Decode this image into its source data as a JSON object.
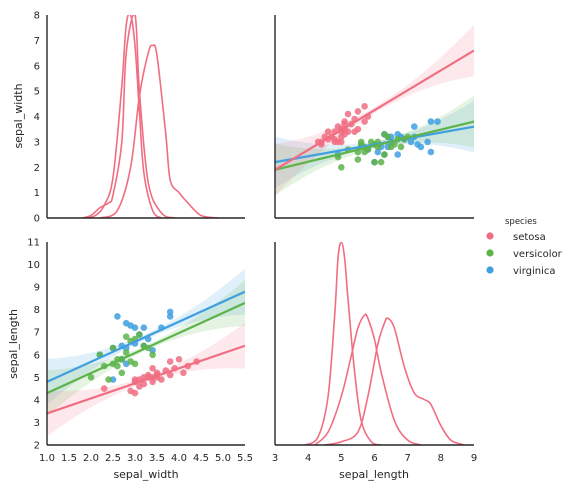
{
  "colors": {
    "setosa": "#f06d82",
    "versicolor": "#5db34a",
    "virginica": "#3f9fe0",
    "axis": "#262626"
  },
  "legend": {
    "title": "species",
    "placement": "right",
    "entries": [
      "setosa",
      "versicolor",
      "virginica"
    ]
  },
  "chart_data": [
    {
      "type": "line",
      "panel": "top-left",
      "subtype": "kde",
      "xlabel": "",
      "ylabel": "sepal_width",
      "yticks": [
        0,
        1,
        2,
        3,
        4,
        5,
        6,
        7,
        8
      ],
      "ylim": [
        0,
        8
      ],
      "xlim": [
        1.0,
        5.5
      ],
      "series": [
        {
          "values_x": [
            1.9,
            2.1,
            2.3,
            2.5,
            2.7,
            2.8,
            2.9,
            3.0,
            3.1,
            3.2,
            3.4,
            3.6
          ],
          "values_y": [
            0.0,
            0.1,
            0.5,
            1.6,
            5.2,
            7.6,
            8.0,
            6.8,
            4.2,
            1.8,
            0.3,
            0.0
          ]
        },
        {
          "values_x": [
            1.8,
            2.0,
            2.2,
            2.4,
            2.5,
            2.7,
            2.8,
            3.0,
            3.1,
            3.3,
            3.6,
            3.9
          ],
          "values_y": [
            0.0,
            0.1,
            0.4,
            0.6,
            0.9,
            3.0,
            6.5,
            8.0,
            5.0,
            1.4,
            0.2,
            0.0
          ]
        },
        {
          "values_x": [
            2.2,
            2.6,
            2.9,
            3.1,
            3.3,
            3.4,
            3.5,
            3.7,
            3.8,
            4.0,
            4.2,
            4.5,
            4.9
          ],
          "values_y": [
            0.0,
            0.3,
            2.0,
            4.8,
            6.5,
            6.8,
            6.4,
            3.3,
            1.5,
            1.0,
            0.6,
            0.1,
            0.0
          ]
        }
      ]
    },
    {
      "type": "scatter",
      "panel": "top-right",
      "xlabel": "",
      "ylabel": "",
      "xlim": [
        3,
        9
      ],
      "ylim": [
        0,
        8
      ],
      "series": [
        {
          "name": "setosa",
          "x": [
            4.4,
            4.5,
            4.6,
            4.6,
            4.7,
            4.8,
            4.8,
            4.9,
            4.9,
            5.0,
            5.0,
            5.0,
            5.1,
            5.1,
            5.1,
            5.2,
            5.2,
            5.3,
            5.4,
            5.4,
            5.5,
            5.5,
            5.7,
            5.7,
            5.8,
            4.3,
            4.4,
            4.8,
            5.0,
            5.1
          ],
          "y": [
            2.9,
            3.2,
            3.1,
            3.4,
            3.2,
            3.0,
            3.4,
            3.0,
            3.6,
            3.0,
            3.4,
            3.5,
            3.3,
            3.5,
            3.8,
            3.4,
            4.1,
            3.7,
            3.9,
            3.4,
            4.2,
            3.5,
            3.8,
            4.4,
            4.0,
            3.0,
            3.0,
            3.1,
            3.2,
            3.7
          ],
          "fit": [
            [
              3,
              1.9
            ],
            [
              9,
              6.6
            ]
          ]
        },
        {
          "name": "versicolor",
          "x": [
            4.9,
            5.0,
            5.2,
            5.5,
            5.6,
            5.6,
            5.7,
            5.8,
            5.9,
            6.0,
            6.0,
            6.1,
            6.2,
            6.3,
            6.3,
            6.4,
            6.5,
            6.6,
            6.7,
            6.8,
            6.9,
            7.0,
            5.5,
            6.1,
            5.7
          ],
          "y": [
            2.4,
            2.0,
            2.7,
            2.3,
            2.9,
            3.0,
            2.8,
            2.7,
            3.0,
            2.2,
            2.9,
            2.8,
            2.2,
            2.5,
            3.3,
            3.2,
            2.8,
            2.9,
            3.1,
            2.8,
            3.1,
            3.2,
            2.6,
            3.0,
            2.6
          ],
          "fit": [
            [
              3,
              1.9
            ],
            [
              9,
              3.8
            ]
          ]
        },
        {
          "name": "virginica",
          "x": [
            4.9,
            5.6,
            5.8,
            6.0,
            6.1,
            6.2,
            6.3,
            6.3,
            6.4,
            6.5,
            6.7,
            6.7,
            6.8,
            6.9,
            7.1,
            7.2,
            7.3,
            7.4,
            7.6,
            7.7,
            7.7,
            7.9,
            6.4,
            6.5,
            7.2
          ],
          "y": [
            2.5,
            2.8,
            2.7,
            2.2,
            2.6,
            2.8,
            2.5,
            3.3,
            3.2,
            3.0,
            3.3,
            2.5,
            3.2,
            3.1,
            3.0,
            3.2,
            2.9,
            2.8,
            3.0,
            3.8,
            2.6,
            3.8,
            2.8,
            3.2,
            3.6
          ],
          "fit": [
            [
              3,
              2.2
            ],
            [
              9,
              3.6
            ]
          ]
        }
      ]
    },
    {
      "type": "scatter",
      "panel": "bottom-left",
      "xlabel": "sepal_width",
      "ylabel": "sepal_length",
      "xticks": [
        1.0,
        1.5,
        2.0,
        2.5,
        3.0,
        3.5,
        4.0,
        4.5,
        5.0,
        5.5
      ],
      "yticks": [
        2,
        3,
        4,
        5,
        6,
        7,
        8,
        9,
        10,
        11
      ],
      "xlim": [
        1.0,
        5.5
      ],
      "ylim": [
        2,
        11
      ],
      "series": [
        {
          "name": "setosa",
          "x": [
            2.9,
            3.0,
            3.0,
            3.1,
            3.2,
            3.2,
            3.3,
            3.4,
            3.4,
            3.4,
            3.5,
            3.5,
            3.6,
            3.7,
            3.8,
            3.9,
            4.0,
            4.1,
            4.2,
            4.4,
            3.0,
            3.1,
            3.3,
            3.5,
            3.8,
            2.3
          ],
          "y": [
            4.4,
            4.3,
            4.8,
            4.6,
            4.7,
            5.0,
            5.1,
            4.8,
            5.0,
            5.4,
            5.1,
            5.2,
            4.9,
            5.3,
            5.1,
            5.4,
            5.8,
            5.2,
            5.5,
            5.7,
            4.9,
            4.9,
            5.0,
            5.0,
            5.7,
            4.5
          ],
          "fit": [
            [
              1.0,
              3.4
            ],
            [
              5.5,
              6.4
            ]
          ]
        },
        {
          "name": "versicolor",
          "x": [
            2.0,
            2.2,
            2.3,
            2.4,
            2.5,
            2.6,
            2.7,
            2.8,
            2.8,
            2.9,
            2.9,
            3.0,
            3.0,
            3.1,
            3.2,
            3.3,
            2.5,
            2.7,
            2.6,
            3.4
          ],
          "y": [
            5.0,
            6.0,
            5.5,
            4.9,
            5.6,
            5.8,
            5.2,
            6.1,
            6.8,
            5.7,
            6.6,
            5.6,
            6.7,
            6.9,
            6.4,
            6.3,
            6.3,
            5.8,
            5.5,
            6.0
          ],
          "fit": [
            [
              1.0,
              4.3
            ],
            [
              5.5,
              8.3
            ]
          ]
        },
        {
          "name": "virginica",
          "x": [
            2.2,
            2.5,
            2.5,
            2.6,
            2.7,
            2.7,
            2.8,
            2.8,
            2.9,
            3.0,
            3.0,
            3.1,
            3.2,
            3.2,
            3.3,
            3.4,
            3.6,
            3.8,
            3.8,
            2.8
          ],
          "y": [
            6.0,
            6.3,
            4.9,
            7.7,
            5.8,
            6.4,
            7.4,
            6.3,
            7.3,
            6.5,
            7.2,
            6.9,
            6.4,
            7.2,
            6.7,
            6.2,
            7.2,
            7.7,
            7.9,
            5.6
          ],
          "fit": [
            [
              1.0,
              4.8
            ],
            [
              5.5,
              8.8
            ]
          ]
        }
      ]
    },
    {
      "type": "line",
      "panel": "bottom-right",
      "subtype": "kde",
      "xlabel": "sepal_length",
      "ylabel": "",
      "xticks": [
        3,
        4,
        5,
        6,
        7,
        8,
        9
      ],
      "xlim": [
        3,
        9
      ],
      "ylim": [
        0,
        1.25
      ],
      "series": [
        {
          "values_x": [
            3.9,
            4.3,
            4.6,
            4.8,
            4.9,
            5.0,
            5.1,
            5.2,
            5.4,
            5.6,
            5.9,
            6.2
          ],
          "values_y": [
            0.0,
            0.05,
            0.3,
            0.8,
            1.15,
            1.25,
            1.15,
            0.9,
            0.45,
            0.15,
            0.02,
            0.0
          ]
        },
        {
          "values_x": [
            4.2,
            4.6,
            5.0,
            5.3,
            5.5,
            5.7,
            5.8,
            6.0,
            6.2,
            6.6,
            7.0,
            7.4
          ],
          "values_y": [
            0.0,
            0.08,
            0.3,
            0.55,
            0.72,
            0.8,
            0.78,
            0.65,
            0.45,
            0.15,
            0.03,
            0.0
          ]
        },
        {
          "values_x": [
            4.5,
            5.0,
            5.5,
            5.8,
            6.1,
            6.3,
            6.4,
            6.6,
            6.9,
            7.2,
            7.5,
            7.7,
            8.0,
            8.3,
            8.7
          ],
          "values_y": [
            0.0,
            0.02,
            0.08,
            0.3,
            0.62,
            0.75,
            0.78,
            0.72,
            0.48,
            0.32,
            0.28,
            0.25,
            0.12,
            0.03,
            0.0
          ]
        }
      ]
    }
  ]
}
